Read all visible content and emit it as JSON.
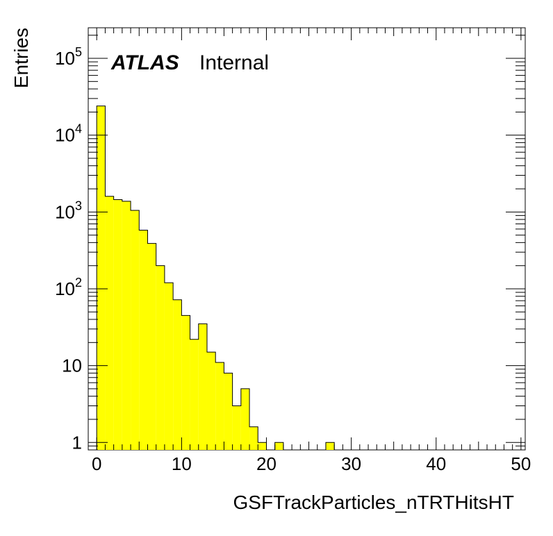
{
  "chart_data": {
    "type": "bar",
    "style": "histogram",
    "x_bin_width": 1,
    "x_bin_starts": [
      0,
      1,
      2,
      3,
      4,
      5,
      6,
      7,
      8,
      9,
      10,
      11,
      12,
      13,
      14,
      15,
      16,
      17,
      18,
      19,
      20,
      21,
      22,
      23,
      24,
      25,
      26,
      27,
      28,
      29,
      30,
      31,
      32,
      33,
      34,
      35,
      36,
      37,
      38,
      39,
      40,
      41,
      42,
      43,
      44,
      45,
      46,
      47,
      48,
      49
    ],
    "values": [
      24000,
      1600,
      1450,
      1380,
      1050,
      580,
      390,
      200,
      120,
      72,
      45,
      22,
      35,
      15,
      11,
      8,
      3,
      5,
      1.6,
      1,
      0,
      1,
      0,
      0,
      0,
      0,
      0,
      1,
      0,
      0,
      0,
      0,
      0,
      0,
      0,
      0,
      0,
      0,
      0,
      0,
      0,
      0,
      0,
      0,
      0,
      0,
      0,
      0,
      0,
      0
    ],
    "xlabel": "GSFTrackParticles_nTRTHitsHT",
    "ylabel": "Entries",
    "xlim": [
      -1,
      50.5
    ],
    "ylim": [
      0.8,
      250000
    ],
    "yscale": "log",
    "x_ticks": [
      "0",
      "10",
      "20",
      "30",
      "40",
      "50"
    ],
    "y_ticks": [
      {
        "base": "1",
        "exp": ""
      },
      {
        "base": "10",
        "exp": ""
      },
      {
        "base": "10",
        "exp": "2"
      },
      {
        "base": "10",
        "exp": "3"
      },
      {
        "base": "10",
        "exp": "4"
      },
      {
        "base": "10",
        "exp": "5"
      }
    ],
    "fill_color": "#ffff00",
    "line_color": "#000000",
    "atlas_label": "ATLAS",
    "atlas_status": "Internal"
  }
}
